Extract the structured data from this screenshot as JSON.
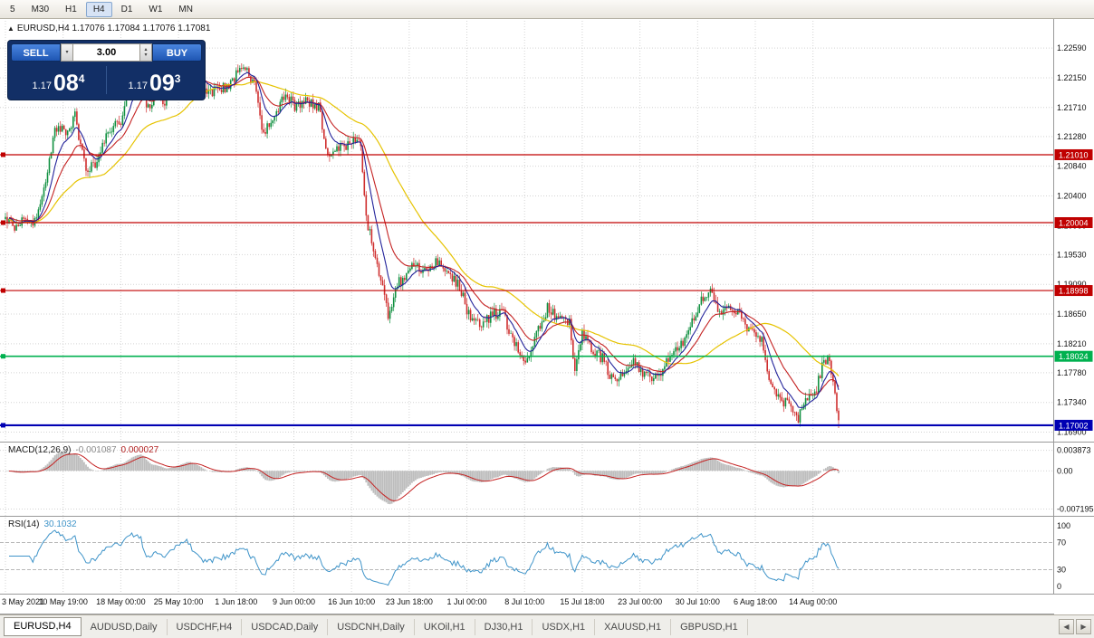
{
  "toolbar": {
    "timeframes": [
      "5",
      "M30",
      "H1",
      "H4",
      "D1",
      "W1",
      "MN"
    ],
    "active": "H4"
  },
  "chart": {
    "title_line": "EURUSD,H4 1.17076 1.17084 1.17076 1.17081",
    "view": {
      "price_max": 1.229,
      "price_min": 1.168
    },
    "price_axis": [
      "1.22590",
      "1.22150",
      "1.21710",
      "1.21280",
      "1.20840",
      "1.20400",
      "1.19960",
      "1.19530",
      "1.19090",
      "1.18650",
      "1.18210",
      "1.17780",
      "1.17340",
      "1.16900"
    ],
    "hlines": [
      {
        "price": 1.2101,
        "label": "1.21010",
        "color": "#c00000",
        "width": 1.2
      },
      {
        "price": 1.20004,
        "label": "1.20004",
        "color": "#c00000",
        "width": 1.2
      },
      {
        "price": 1.18998,
        "label": "1.18998",
        "color": "#c00000",
        "width": 1.2
      },
      {
        "price": 1.18024,
        "label": "1.18024",
        "color": "#00b14f",
        "width": 1.7
      },
      {
        "price": 1.17002,
        "label": "1.17002",
        "color": "#0000b3",
        "width": 2.2
      }
    ],
    "anchors": [
      [
        0,
        1.201
      ],
      [
        4,
        1.1993
      ],
      [
        10,
        1.2005
      ],
      [
        16,
        1.2002
      ],
      [
        22,
        1.206
      ],
      [
        27,
        1.2145
      ],
      [
        33,
        1.2132
      ],
      [
        38,
        1.2158
      ],
      [
        44,
        1.2078
      ],
      [
        50,
        1.2092
      ],
      [
        57,
        1.214
      ],
      [
        63,
        1.2152
      ],
      [
        69,
        1.2218
      ],
      [
        74,
        1.2228
      ],
      [
        77,
        1.2168
      ],
      [
        82,
        1.219
      ],
      [
        88,
        1.2178
      ],
      [
        93,
        1.2212
      ],
      [
        99,
        1.225
      ],
      [
        105,
        1.2208
      ],
      [
        111,
        1.219
      ],
      [
        117,
        1.2196
      ],
      [
        123,
        1.2206
      ],
      [
        129,
        1.2232
      ],
      [
        136,
        1.2208
      ],
      [
        141,
        1.2128
      ],
      [
        147,
        1.2165
      ],
      [
        153,
        1.2188
      ],
      [
        159,
        1.2172
      ],
      [
        165,
        1.2182
      ],
      [
        171,
        1.2172
      ],
      [
        176,
        1.2098
      ],
      [
        182,
        1.211
      ],
      [
        188,
        1.2118
      ],
      [
        194,
        1.2122
      ],
      [
        197,
        1.2005
      ],
      [
        200,
        1.1972
      ],
      [
        203,
        1.1932
      ],
      [
        207,
        1.1892
      ],
      [
        209,
        1.1858
      ],
      [
        213,
        1.1905
      ],
      [
        218,
        1.1922
      ],
      [
        224,
        1.194
      ],
      [
        230,
        1.1928
      ],
      [
        236,
        1.1944
      ],
      [
        242,
        1.1924
      ],
      [
        248,
        1.1906
      ],
      [
        254,
        1.1856
      ],
      [
        260,
        1.1846
      ],
      [
        266,
        1.1866
      ],
      [
        272,
        1.1864
      ],
      [
        278,
        1.1822
      ],
      [
        284,
        1.179
      ],
      [
        290,
        1.184
      ],
      [
        296,
        1.1874
      ],
      [
        302,
        1.186
      ],
      [
        308,
        1.1852
      ],
      [
        311,
        1.1778
      ],
      [
        315,
        1.1836
      ],
      [
        320,
        1.1812
      ],
      [
        326,
        1.18
      ],
      [
        332,
        1.1764
      ],
      [
        338,
        1.178
      ],
      [
        344,
        1.1794
      ],
      [
        350,
        1.1772
      ],
      [
        356,
        1.1772
      ],
      [
        362,
        1.18
      ],
      [
        368,
        1.1816
      ],
      [
        374,
        1.1846
      ],
      [
        380,
        1.1884
      ],
      [
        386,
        1.1902
      ],
      [
        389,
        1.1872
      ],
      [
        395,
        1.187
      ],
      [
        401,
        1.1864
      ],
      [
        407,
        1.1836
      ],
      [
        413,
        1.183
      ],
      [
        417,
        1.1766
      ],
      [
        423,
        1.174
      ],
      [
        429,
        1.1726
      ],
      [
        433,
        1.1712
      ],
      [
        437,
        1.1742
      ],
      [
        443,
        1.1756
      ],
      [
        447,
        1.1798
      ],
      [
        450,
        1.1792
      ],
      [
        452,
        1.1762
      ],
      [
        455,
        1.1708
      ]
    ],
    "candle_count": 456,
    "last_close": 1.17081
  },
  "trade_panel": {
    "sell_label": "SELL",
    "buy_label": "BUY",
    "volume": "3.00",
    "sell_price_base": "1.17",
    "sell_price_pips": "08",
    "sell_price_pt": "4",
    "buy_price_base": "1.17",
    "buy_price_pips": "09",
    "buy_price_pt": "3"
  },
  "macd": {
    "name": "MACD(12,26,9)",
    "main_value": "-0.001087",
    "signal_value": "0.000027",
    "axis": [
      "0.003873",
      "0.00",
      "-0.007195"
    ],
    "range": {
      "max": 0.0045,
      "min": -0.0078
    }
  },
  "rsi": {
    "name": "RSI(14)",
    "value": "30.1032",
    "axis": [
      "100",
      "70",
      "30",
      "0"
    ],
    "levels": [
      70,
      30
    ]
  },
  "time_axis": [
    "3 May 2021",
    "10 May 19:00",
    "18 May 00:00",
    "25 May 10:00",
    "1 Jun 18:00",
    "9 Jun 00:00",
    "16 Jun 10:00",
    "23 Jun 18:00",
    "1 Jul 00:00",
    "8 Jul 10:00",
    "15 Jul 18:00",
    "23 Jul 00:00",
    "30 Jul 10:00",
    "6 Aug 18:00",
    "14 Aug 00:00"
  ],
  "tabs": [
    {
      "label": "EURUSD,H4",
      "active": true
    },
    {
      "label": "AUDUSD,Daily",
      "active": false
    },
    {
      "label": "USDCHF,H4",
      "active": false
    },
    {
      "label": "USDCAD,Daily",
      "active": false
    },
    {
      "label": "USDCNH,Daily",
      "active": false
    },
    {
      "label": "UKOil,H1",
      "active": false
    },
    {
      "label": "DJ30,H1",
      "active": false
    },
    {
      "label": "USDX,H1",
      "active": false
    },
    {
      "label": "XAUUSD,H1",
      "active": false
    },
    {
      "label": "GBPUSD,H1",
      "active": false
    }
  ],
  "colors": {
    "up": "#109040",
    "down": "#cf2e2e",
    "ma_fast_blue": "#22229a",
    "ma_mid_red": "#c42222",
    "ma_slow_yellow": "#e6c300",
    "macd_hist": "#bdbdbd",
    "macd_signal": "#c42222",
    "rsi_line": "#3f94c9",
    "grid": "#d4d4d4",
    "separator": "#9a9a9a",
    "axis_text": "#111111"
  }
}
